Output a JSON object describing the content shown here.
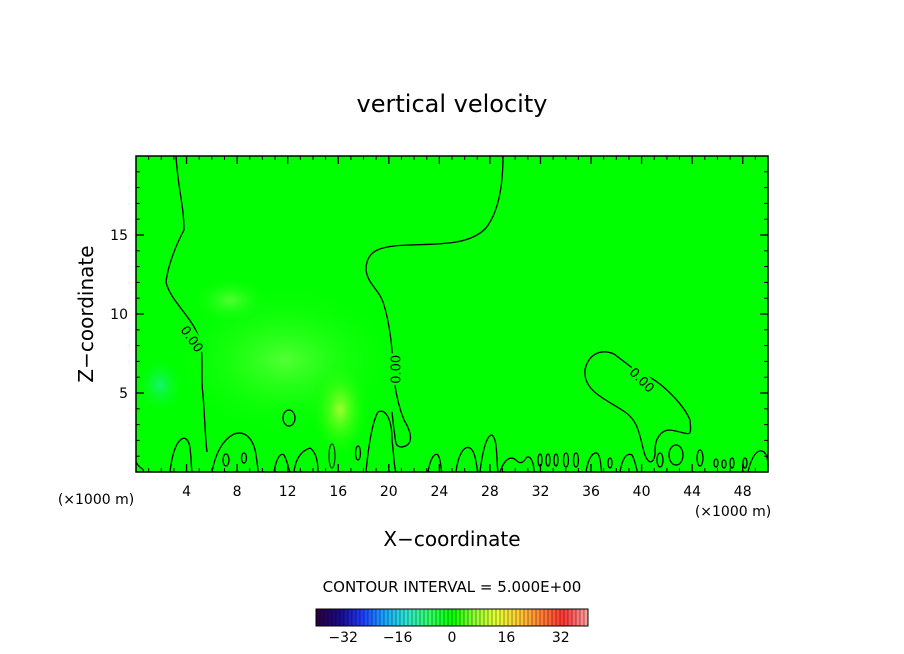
{
  "chart_data": {
    "type": "heatmap",
    "title": "vertical velocity",
    "xlabel": "X−coordinate",
    "ylabel": "Z−coordinate",
    "x_unit": "(×1000 m)",
    "z_unit": "(×1000 m)",
    "xlim": [
      0,
      50
    ],
    "ylim": [
      0,
      20
    ],
    "xticks": [
      4,
      8,
      12,
      16,
      20,
      24,
      28,
      32,
      36,
      40,
      44,
      48
    ],
    "yticks": [
      5,
      10,
      15
    ],
    "contour_interval_label": "CONTOUR INTERVAL = 5.000E+00",
    "contour_interval": 5.0,
    "contour_labels": [
      {
        "text": "0.00",
        "x": 4.4,
        "z": 8.4,
        "angle": 55
      },
      {
        "text": "0.00",
        "x": 20.6,
        "z": 6.5,
        "angle": -90
      },
      {
        "text": "0.00",
        "x": 40.0,
        "z": 5.8,
        "angle": 45
      }
    ],
    "field_range": [
      -40,
      40
    ],
    "colorbar_ticks": [
      -32,
      -16,
      0,
      16,
      32
    ],
    "background_value": 0,
    "colormap": [
      "#2b0040",
      "#1a0a8c",
      "#1e3dff",
      "#1aa8ff",
      "#2ee8d0",
      "#33ff66",
      "#00ff00",
      "#8cff33",
      "#e6ff33",
      "#ffcc33",
      "#ff8033",
      "#ff3333",
      "#ff9999"
    ]
  }
}
